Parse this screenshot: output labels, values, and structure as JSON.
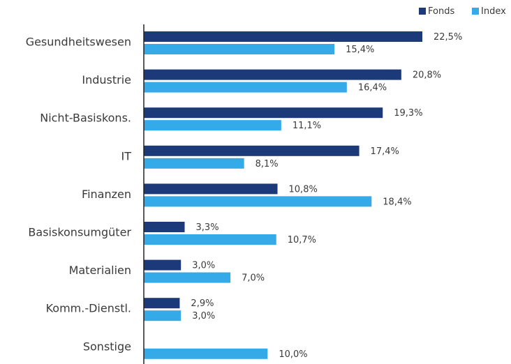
{
  "chart_data": {
    "type": "hbar",
    "categories": [
      "Gesundheitswesen",
      "Industrie",
      "Nicht-Basiskons.",
      "IT",
      "Finanzen",
      "Basiskonsumgüter",
      "Materialien",
      "Komm.-Dienstl.",
      "Sonstige"
    ],
    "series": [
      {
        "name": "Fonds",
        "color": "#1c3a7a",
        "values": [
          22.5,
          20.8,
          19.3,
          17.4,
          10.8,
          3.3,
          3.0,
          2.9,
          null
        ],
        "value_labels": [
          "22,5%",
          "20,8%",
          "19,3%",
          "17,4%",
          "10,8%",
          "3,3%",
          "3,0%",
          "2,9%",
          null
        ]
      },
      {
        "name": "Index",
        "color": "#35aae8",
        "values": [
          15.4,
          16.4,
          11.1,
          8.1,
          18.4,
          10.7,
          7.0,
          3.0,
          10.0
        ],
        "value_labels": [
          "15,4%",
          "16,4%",
          "11,1%",
          "8,1%",
          "18,4%",
          "10,7%",
          "7,0%",
          "3,0%",
          "10,0%"
        ]
      }
    ],
    "legend": "top-right"
  }
}
